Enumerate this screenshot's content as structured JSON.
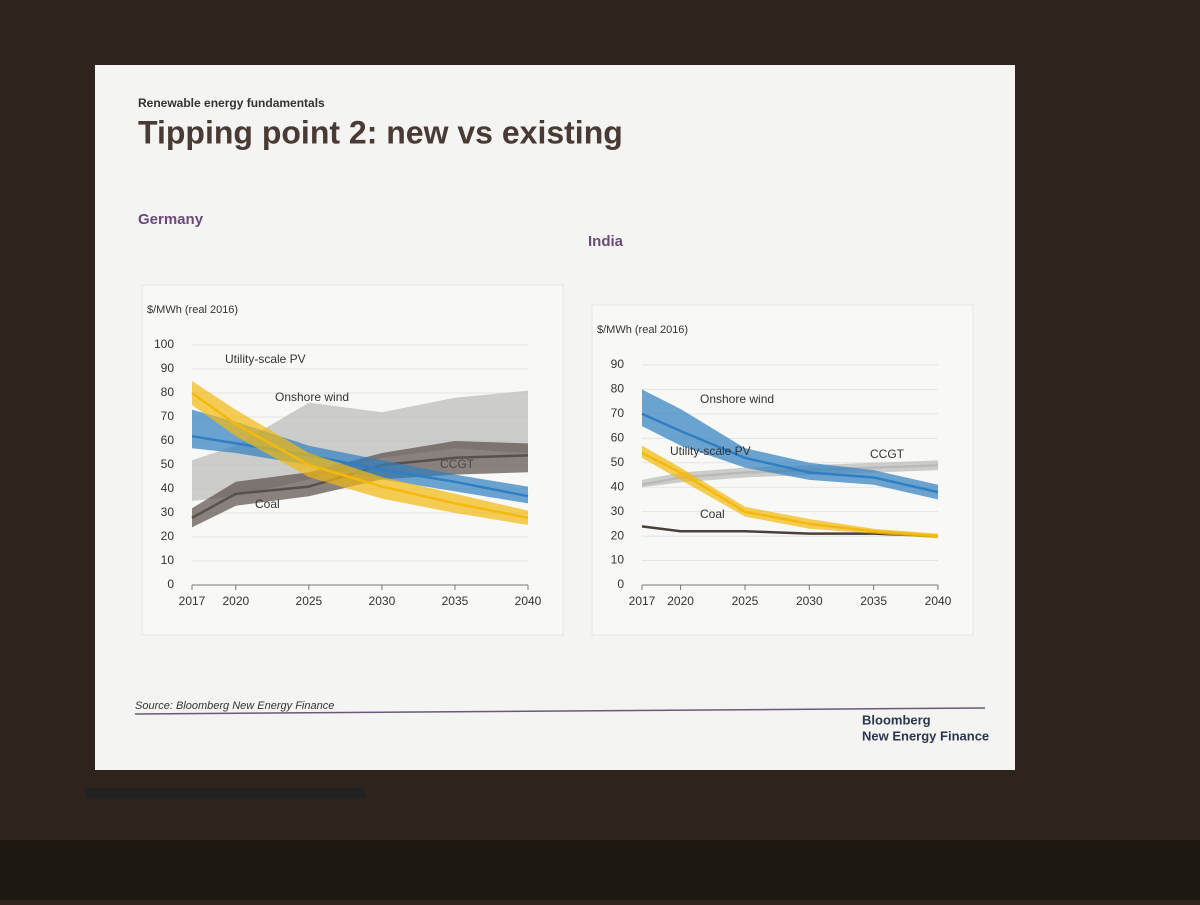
{
  "header": {
    "subtitle": "Renewable energy fundamentals",
    "title": "Tipping point 2: new vs existing"
  },
  "chart_data": [
    {
      "type": "band-line",
      "title": "Germany",
      "y_label": "$/MWh (real 2016)",
      "x": [
        2017,
        2020,
        2025,
        2030,
        2035,
        2040
      ],
      "xlim": [
        2017,
        2040
      ],
      "xticks": [
        2017,
        2020,
        2025,
        2030,
        2035,
        2040
      ],
      "ylim": [
        0,
        100
      ],
      "yticks": [
        0,
        10,
        20,
        30,
        40,
        50,
        60,
        70,
        80,
        90,
        100
      ],
      "grid": true,
      "series": [
        {
          "name": "CCGT",
          "color": "#b9b9b9",
          "lower": [
            35,
            37,
            44,
            53,
            57,
            55
          ],
          "upper": [
            52,
            58,
            76,
            72,
            78,
            81
          ]
        },
        {
          "name": "Coal",
          "color": "#5a4f4a",
          "values": [
            28,
            38,
            41,
            50,
            53,
            54
          ],
          "lower": [
            24,
            33,
            37,
            44,
            46,
            47
          ],
          "upper": [
            32,
            43,
            47,
            55,
            60,
            59
          ]
        },
        {
          "name": "Onshore wind",
          "color": "#2f7fc1",
          "values": [
            62,
            59,
            54,
            48,
            43,
            37
          ],
          "lower": [
            57,
            55,
            50,
            44,
            39,
            34
          ],
          "upper": [
            73,
            68,
            58,
            52,
            46,
            41
          ]
        },
        {
          "name": "Utility-scale PV",
          "color": "#f2b90f",
          "values": [
            80,
            67,
            50,
            41,
            34,
            28
          ],
          "lower": [
            75,
            62,
            45,
            36,
            30,
            25
          ],
          "upper": [
            85,
            73,
            55,
            45,
            38,
            31
          ]
        }
      ]
    },
    {
      "type": "band-line",
      "title": "India",
      "y_label": "$/MWh (real 2016)",
      "x": [
        2017,
        2020,
        2025,
        2030,
        2035,
        2040
      ],
      "xlim": [
        2017,
        2040
      ],
      "xticks": [
        2017,
        2020,
        2025,
        2030,
        2035,
        2040
      ],
      "ylim": [
        0,
        90
      ],
      "yticks": [
        0,
        10,
        20,
        30,
        40,
        50,
        60,
        70,
        80,
        90
      ],
      "grid": true,
      "series": [
        {
          "name": "CCGT",
          "color": "#b9b9b9",
          "values": [
            41,
            44,
            46,
            47,
            48,
            49
          ],
          "lower": [
            40,
            42,
            44,
            45,
            46,
            47
          ],
          "upper": [
            43,
            46,
            48,
            49,
            50,
            51
          ]
        },
        {
          "name": "Coal",
          "color": "#4a3f3a",
          "values": [
            24,
            22,
            22,
            21,
            21,
            20
          ]
        },
        {
          "name": "Onshore wind",
          "color": "#2f7fc1",
          "values": [
            70,
            63,
            52,
            46,
            44,
            38
          ],
          "lower": [
            65,
            57,
            48,
            43,
            41,
            35
          ],
          "upper": [
            80,
            72,
            56,
            50,
            47,
            41
          ]
        },
        {
          "name": "Utility-scale PV",
          "color": "#f2b90f",
          "values": [
            54,
            46,
            30,
            25,
            22,
            20
          ],
          "lower": [
            52,
            43,
            28,
            23,
            21,
            19
          ],
          "upper": [
            57,
            48,
            32,
            27,
            23,
            21
          ]
        }
      ]
    }
  ],
  "footer": {
    "source": "Source: Bloomberg New Energy Finance",
    "brand_1": "Bloomberg",
    "brand_2": "New Energy Finance"
  }
}
